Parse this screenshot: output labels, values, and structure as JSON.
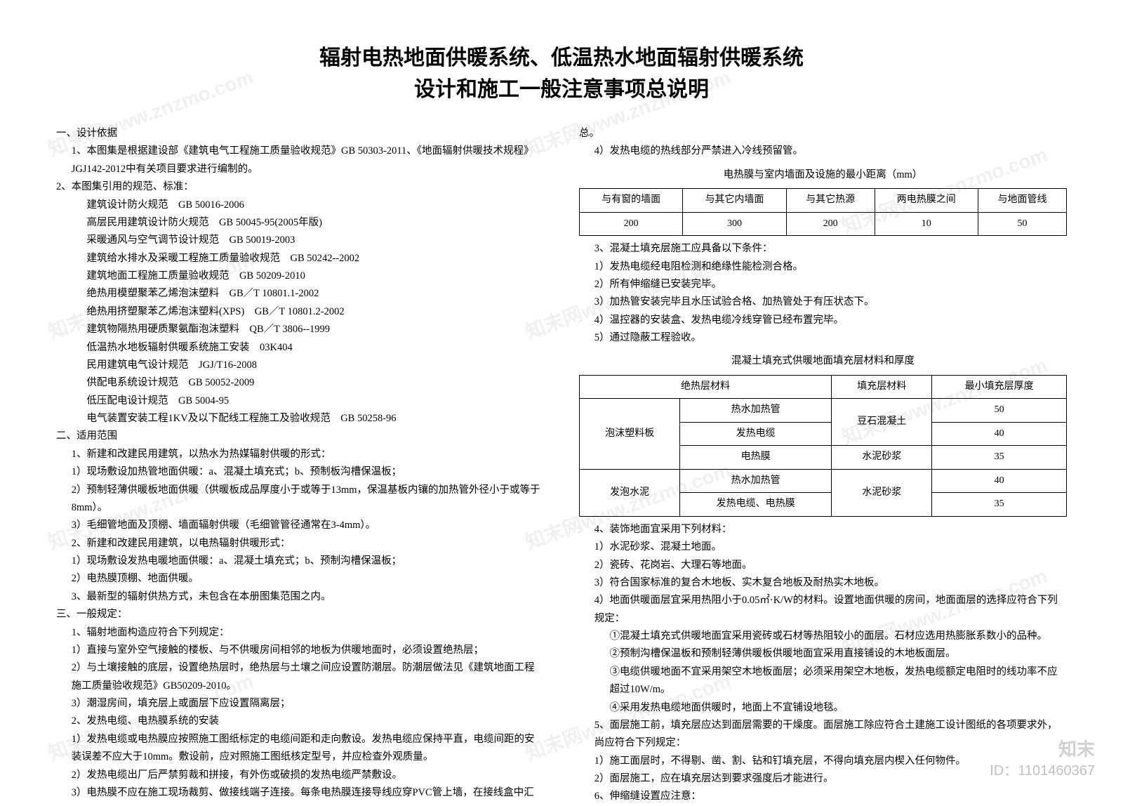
{
  "watermark_text": "知末网www.znzmo.com",
  "title_line1": "辐射电热地面供暖系统、低温热水地面辐射供暖系统",
  "title_line2": "设计和施工一般注意事项总说明",
  "footer": {
    "logo": "知末",
    "id": "ID：1101460367"
  },
  "left": {
    "h1": "一、设计依据",
    "p1": "1、本图集是根据建设部《建筑电气工程施工质量验收规范》GB 50303-2011、《地面辐射供暖技术规程》JGJ142-2012中有关项目要求进行编制的。",
    "p2": "2、本图集引用的规范、标准：",
    "std1": "建筑设计防火规范　GB 50016-2006",
    "std2": "高层民用建筑设计防火规范　GB 50045-95(2005年版)",
    "std3": "采暖通风与空气调节设计规范　GB 50019-2003",
    "std4": "建筑给水排水及采暖工程施工质量验收规范　GB 50242--2002",
    "std5": "建筑地面工程施工质量验收规范　GB 50209-2010",
    "std6": "绝热用模塑聚苯乙烯泡沫塑料　GB／T 10801.1-2002",
    "std7": "绝热用挤塑聚苯乙烯泡沫塑料(XPS)　GB／T 10801.2-2002",
    "std8": "建筑物隔热用硬质聚氨酯泡沫塑料　QB／T 3806--1999",
    "std9": "低温热水地板辐射供暖系统施工安装　03K404",
    "std10": "民用建筑电气设计规范　JGJ/T16-2008",
    "std11": "供配电系统设计规范　GB 50052-2009",
    "std12": "低压配电设计规范　GB 5004-95",
    "std13": "电气装置安装工程1KV及以下配线工程施工及验收规范　GB 50258-96",
    "h2": "二、适用范围",
    "s2_1": "1、新建和改建民用建筑，以热水为热媒辐射供暖的形式：",
    "s2_1_1": "1）现场敷设加热管地面供暖：a、混凝土填充式；b、预制板沟槽保温板；",
    "s2_1_2": "2）预制轻薄供暖板地面供暖（供暖板成品厚度小于或等于13mm，保温基板内镶的加热管外径小于或等于8mm）。",
    "s2_1_3": "3）毛细管地面及顶棚、墙面辐射供暖（毛细管管径通常在3-4mm）。",
    "s2_2": "2、新建和改建民用建筑，以电热辐射供暖形式：",
    "s2_2_1": "1）现场敷设发热电暖地面供暖：a、混凝土填充式；b、预制沟槽保温板；",
    "s2_2_2": "2）电热膜顶棚、地面供暖。",
    "s2_3": "3、最新型的辐射供热方式，未包含在本册图集范围之内。",
    "h3": "三、一般规定：",
    "s3_1": "1、辐射地面构造应符合下列规定：",
    "s3_1_1": "1）直接与室外空气接触的楼板、与不供暖房间相邻的地板为供暖地面时，必须设置绝热层；",
    "s3_1_2": "2）与土壤接触的底层，设置绝热层时，绝热层与土壤之间应设置防潮层。防潮层做法见《建筑地面工程施工质量验收规范》GB50209-2010。",
    "s3_1_3": "3）潮湿房间，填充层上或面层下应设置隔离层；",
    "s3_2": "2、发热电缆、电热膜系统的安装",
    "s3_2_1": "1）发热电缆或电热膜应按照施工图纸标定的电缆间距和走向敷设。发热电缆应保持平直，电缆间距的安装误差不应大于10mm。敷设前，应对照施工图纸核定型号，并应检查外观质量。",
    "s3_2_2": "2）发热电缆出厂后严禁剪裁和拼接，有外伤或破损的发热电缆严禁敷设。",
    "s3_2_3": "3）电热膜不应在施工现场裁剪、做接线端子连接。每条电热膜连接导线应穿PVC管上墙，在接线盒中汇"
  },
  "right": {
    "cont": "总。",
    "s3_2_4": "4）发热电缆的热线部分严禁进入冷线预留管。",
    "table1_title": "电热膜与室内墙面及设施的最小距离（mm）",
    "table1": {
      "headers": [
        "与有窗的墙面",
        "与其它内墙面",
        "与其它热源",
        "两电热膜之间",
        "与地面管线"
      ],
      "row": [
        "200",
        "300",
        "200",
        "10",
        "50"
      ]
    },
    "s3_3": "3、混凝土填充层施工应具备以下条件：",
    "s3_3_1": "1）发热电缆经电阻检测和绝缘性能检测合格。",
    "s3_3_2": "2）所有伸缩缝已安装完毕。",
    "s3_3_3": "3）加热管安装完毕且水压试验合格、加热管处于有压状态下。",
    "s3_3_4": "4）温控器的安装盒、发热电缆冷线穿管已经布置完毕。",
    "s3_3_5": "5）通过隐蔽工程验收。",
    "table2_title": "混凝土填充式供暖地面填充层材料和厚度",
    "table2": {
      "h1": "绝热层材料",
      "h2": "填充层材料",
      "h3": "最小填充层厚度",
      "g1": "泡沫塑料板",
      "g1r1a": "热水加热管",
      "g1r1b": "豆石混凝土",
      "g1r1c": "50",
      "g1r2a": "发热电缆",
      "g1r2c": "40",
      "g1r3a": "电热膜",
      "g1r3b": "水泥砂浆",
      "g1r3c": "35",
      "g2": "发泡水泥",
      "g2r1a": "热水加热管",
      "g2r1b": "水泥砂浆",
      "g2r1c": "40",
      "g2r2a": "发热电缆、电热膜",
      "g2r2c": "35"
    },
    "s4": "4、装饰地面宜采用下列材料：",
    "s4_1": "1）水泥砂浆、混凝土地面。",
    "s4_2": "2）瓷砖、花岗岩、大理石等地面。",
    "s4_3": "3）符合国家标准的复合木地板、实木复合地板及耐热实木地板。",
    "s4_4": "4）地面供暖面层宜采用热阻小于0.05㎡·K/W的材料。设置地面供暖的房间，地面面层的选择应符合下列规定：",
    "s4_4_1": "①混凝土填充式供暖地面宜采用瓷砖或石材等热阻较小的面层。石材应选用热膨胀系数小的品种。",
    "s4_4_2": "②预制沟槽保温板和预制轻薄供暖板供暖地面宜采用直接铺设的木地板面层。",
    "s4_4_3": "③电缆供暖地面不宜采用架空木地板面层；必须采用架空木地板，发热电缆额定电阻时的线功率不应超过10W/m。",
    "s4_4_4": "④采用发热电缆地面供暖时，地面上不宜铺设地毯。",
    "s5": "5、面层施工前，填充层应达到面层需要的干燥度。面层施工除应符合土建施工设计图纸的各项要求外，尚应符合下列规定：",
    "s5_1": "1）施工面层时，不得剔、凿、割、钻和钉填充层，不得向填充层内楔入任何物件。",
    "s5_2": "2）面层施工，应在填充层达到要求强度后才能进行。",
    "s6": "6、伸缩缝设置应注意："
  }
}
